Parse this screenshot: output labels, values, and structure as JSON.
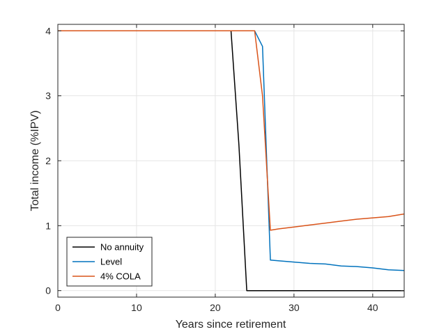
{
  "chart_data": {
    "type": "line",
    "title": "",
    "xlabel": "Years since retirement",
    "ylabel": "Total income (%IPV)",
    "xlim": [
      0,
      44
    ],
    "ylim": [
      -0.1,
      4.1
    ],
    "xticks": [
      0,
      10,
      20,
      30,
      40
    ],
    "yticks": [
      0,
      1,
      2,
      3,
      4
    ],
    "grid": true,
    "legend_position": "bottom-left",
    "series": [
      {
        "name": "No annuity",
        "color": "#000000",
        "x": [
          0,
          22,
          23,
          24,
          25,
          30,
          35,
          40,
          44
        ],
        "y": [
          4,
          4,
          2.25,
          0,
          0,
          0,
          0,
          0,
          0
        ]
      },
      {
        "name": "Level",
        "color": "#0072bd",
        "x": [
          0,
          25,
          26,
          27,
          28,
          30,
          32,
          34,
          36,
          38,
          40,
          42,
          44
        ],
        "y": [
          4,
          4,
          3.76,
          0.47,
          0.46,
          0.44,
          0.42,
          0.41,
          0.38,
          0.37,
          0.35,
          0.32,
          0.31
        ]
      },
      {
        "name": "4% COLA",
        "color": "#d95319",
        "x": [
          0,
          25,
          26,
          27,
          28,
          30,
          32,
          34,
          36,
          38,
          40,
          42,
          44
        ],
        "y": [
          4,
          4,
          3.0,
          0.93,
          0.95,
          0.98,
          1.01,
          1.04,
          1.07,
          1.1,
          1.12,
          1.14,
          1.18
        ]
      }
    ]
  }
}
